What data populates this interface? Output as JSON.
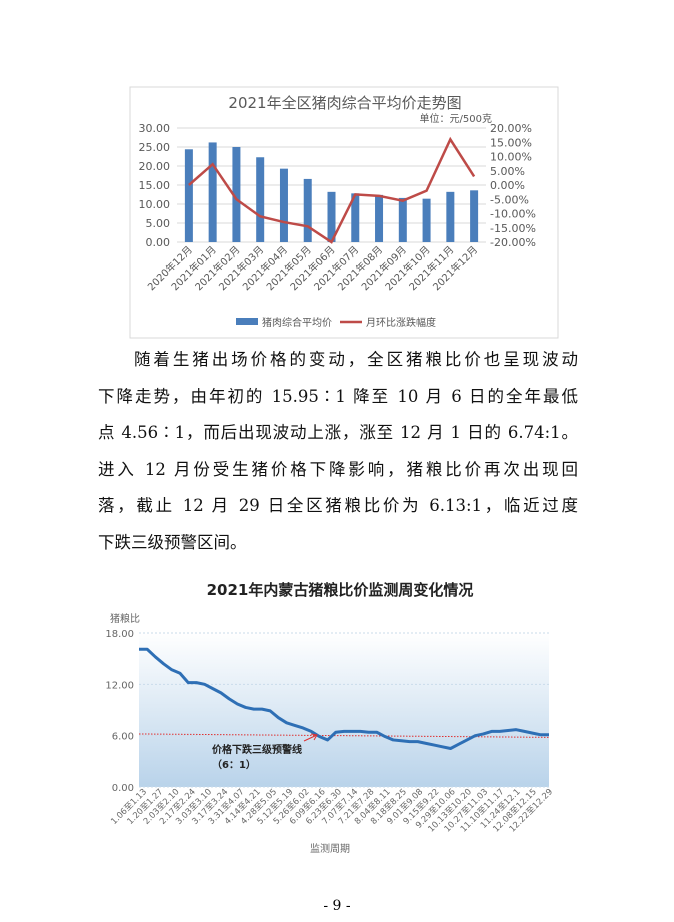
{
  "chart_data": [
    {
      "type": "bar+line",
      "title": "2021年全区猪肉综合平均价走势图",
      "unit_note": "单位：元/500克",
      "categories": [
        "2020年12月",
        "2021年01月",
        "2021年02月",
        "2021年03月",
        "2021年04月",
        "2021年05月",
        "2021年06月",
        "2021年07月",
        "2021年08月",
        "2021年09月",
        "2021年10月",
        "2021年11月",
        "2021年12月"
      ],
      "series": [
        {
          "name": "猪肉综合平均价",
          "type": "bar",
          "axis": "left",
          "color": "#4a7ebb",
          "values": [
            24.4,
            26.2,
            25.0,
            22.3,
            19.3,
            16.6,
            13.2,
            12.8,
            12.4,
            11.6,
            11.4,
            13.2,
            13.6
          ]
        },
        {
          "name": "月环比涨跌幅度",
          "type": "line",
          "axis": "right",
          "color": "#be4b48",
          "values": [
            0.0,
            7.3,
            -5.0,
            -11.0,
            -13.0,
            -14.5,
            -20.0,
            -3.3,
            -3.8,
            -5.5,
            -2.0,
            16.0,
            3.0
          ]
        }
      ],
      "left_axis": {
        "range": [
          0,
          30
        ],
        "ticks": [
          "0.00",
          "5.00",
          "10.00",
          "15.00",
          "20.00",
          "25.00",
          "30.00"
        ]
      },
      "right_axis": {
        "range": [
          -20,
          20
        ],
        "ticks": [
          "-20.00%",
          "-15.00%",
          "-10.00%",
          "-5.00%",
          "0.00%",
          "5.00%",
          "10.00%",
          "15.00%",
          "20.00%"
        ]
      },
      "grid": true,
      "legend_position": "bottom"
    },
    {
      "type": "line",
      "title": "2021年内蒙古猪粮比价监测周变化情况",
      "ylabel": "猪粮比",
      "xlabel": "监测周期",
      "ylim": [
        0,
        18
      ],
      "yticks": [
        "0.00",
        "6.00",
        "12.00",
        "18.00"
      ],
      "x_tick_labels": [
        "1.06至1.13",
        "1.20至1.27",
        "2.03至2.10",
        "2.17至2.24",
        "3.03至3.10",
        "3.17至3.24",
        "3.31至4.07",
        "4.14至4.21",
        "4.28至5.05",
        "5.12至5.19",
        "5.26至6.02",
        "6.09至6.16",
        "6.23至6.30",
        "7.07至7.14",
        "7.21至7.28",
        "8.04至8.11",
        "8.18至8.25",
        "9.01至9.08",
        "9.15至9.22",
        "9.29至10.06",
        "10.13至10.20",
        "10.27至11.03",
        "11.10至11.17",
        "11.24至12.1",
        "12.08至12.15",
        "12.22至12.29"
      ],
      "series": [
        {
          "color": "#2e6fb5",
          "values": [
            16.1,
            16.1,
            15.2,
            14.4,
            13.7,
            13.3,
            12.2,
            12.2,
            12.0,
            11.5,
            11.0,
            10.3,
            9.7,
            9.3,
            9.1,
            9.1,
            8.9,
            8.1,
            7.5,
            7.2,
            6.9,
            6.5,
            5.9,
            5.5,
            6.4,
            6.5,
            6.5,
            6.5,
            6.4,
            6.4,
            5.9,
            5.5,
            5.4,
            5.3,
            5.3,
            5.1,
            4.9,
            4.7,
            4.5,
            5.0,
            5.5,
            6.0,
            6.2,
            6.5,
            6.5,
            6.6,
            6.7,
            6.5,
            6.3,
            6.1,
            6.1
          ]
        }
      ],
      "reference_line": {
        "value": 6,
        "color": "#e03030",
        "label_line1": "价格下跌三级预警线",
        "label_line2": "（6：1）"
      }
    }
  ],
  "paragraph": [
    "随着生猪出场价格的变动，全区猪粮比价也呈现波动",
    "下降走势，由年初的 15.95∶1 降至 10 月 6 日的全年最低",
    "点 4.56∶1，而后出现波动上涨，涨至 12 月 1 日的 6.74:1。",
    "进入 12 月份受生猪价格下降影响，猪粮比价再次出现回",
    "落，截止 12 月 29 日全区猪粮比价为 6.13:1，临近过度",
    "下跌三级预警区间。"
  ],
  "page_number": "- 9 -"
}
